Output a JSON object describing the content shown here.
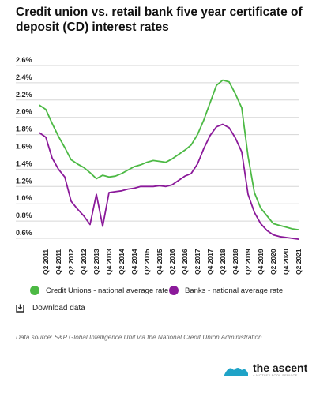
{
  "title": "Credit union vs. retail bank five year certificate of deposit (CD) interest rates",
  "legend": {
    "credit_unions": "Credit Unions - national average rate",
    "banks": "Banks - national average rate"
  },
  "download_label": "Download data",
  "source_text": "Data source: S&P Global Intelligence Unit via the National Credit Union Administration",
  "brand": {
    "name": "the ascent",
    "tagline": "A MOTLEY FOOL SERVICE"
  },
  "colors": {
    "credit_unions": "#4cb944",
    "banks": "#8b1a9a",
    "brand_accent": "#1fa3c7"
  },
  "chart_data": {
    "type": "line",
    "title": "Credit union vs. retail bank five year certificate of deposit (CD) interest rates",
    "xlabel": "",
    "ylabel": "",
    "ylim": [
      0.6,
      2.6
    ],
    "grid": true,
    "legend_position": "bottom",
    "y_ticks": [
      "0.6%",
      "0.8%",
      "1.0%",
      "1.2%",
      "1.4%",
      "1.6%",
      "1.8%",
      "2.0%",
      "2.2%",
      "2.4%",
      "2.6%"
    ],
    "y_tick_values": [
      0.6,
      0.8,
      1.0,
      1.2,
      1.4,
      1.6,
      1.8,
      2.0,
      2.2,
      2.4,
      2.6
    ],
    "x_tick_labels": [
      "Q2 2011",
      "Q4 2011",
      "Q2 2012",
      "Q4 2012",
      "Q2 2013",
      "Q4 2013",
      "Q2 2014",
      "Q4 2014",
      "Q2 2015",
      "Q4 2015",
      "Q2 2016",
      "Q4 2016",
      "Q2 2017",
      "Q4 2017",
      "Q2 2018",
      "Q4 2018",
      "Q2 2019",
      "Q4 2019",
      "Q2 2020",
      "Q4 2020",
      "Q2 2021"
    ],
    "x_tick_positions": [
      1,
      3,
      5,
      7,
      9,
      11,
      13,
      15,
      17,
      19,
      21,
      23,
      25,
      27,
      29,
      31,
      33,
      35,
      37,
      39,
      41
    ],
    "x_range": [
      0,
      41
    ],
    "series": [
      {
        "name": "Credit Unions - national average rate",
        "x": [
          0,
          1,
          2,
          3,
          4,
          5,
          6,
          7,
          8,
          9,
          10,
          11,
          12,
          13,
          14,
          15,
          16,
          17,
          18,
          19,
          20,
          21,
          22,
          23,
          24,
          25,
          26,
          27,
          28,
          29,
          30,
          31,
          32,
          33,
          34,
          35,
          36,
          37,
          38,
          39,
          40,
          41
        ],
        "values": [
          2.14,
          2.09,
          1.93,
          1.78,
          1.65,
          1.51,
          1.46,
          1.42,
          1.36,
          1.29,
          1.33,
          1.31,
          1.32,
          1.35,
          1.39,
          1.43,
          1.45,
          1.48,
          1.5,
          1.49,
          1.48,
          1.52,
          1.57,
          1.62,
          1.68,
          1.8,
          1.97,
          2.17,
          2.37,
          2.43,
          2.41,
          2.27,
          2.11,
          1.55,
          1.13,
          0.95,
          0.86,
          0.77,
          0.75,
          0.73,
          0.71,
          0.7
        ],
        "color": "#4cb944"
      },
      {
        "name": "Banks - national average rate",
        "x": [
          0,
          1,
          2,
          3,
          4,
          5,
          6,
          7,
          8,
          9,
          10,
          11,
          12,
          13,
          14,
          15,
          16,
          17,
          18,
          19,
          20,
          21,
          22,
          23,
          24,
          25,
          26,
          27,
          28,
          29,
          30,
          31,
          32,
          33,
          34,
          35,
          36,
          37,
          38,
          39,
          40,
          41
        ],
        "values": [
          1.82,
          1.77,
          1.53,
          1.4,
          1.31,
          1.03,
          0.94,
          0.86,
          0.76,
          1.11,
          0.74,
          1.13,
          1.14,
          1.15,
          1.17,
          1.18,
          1.2,
          1.2,
          1.2,
          1.21,
          1.2,
          1.22,
          1.27,
          1.32,
          1.35,
          1.46,
          1.64,
          1.79,
          1.89,
          1.92,
          1.88,
          1.76,
          1.6,
          1.11,
          0.9,
          0.77,
          0.69,
          0.64,
          0.62,
          0.61,
          0.6,
          0.59
        ],
        "color": "#8b1a9a"
      }
    ]
  }
}
